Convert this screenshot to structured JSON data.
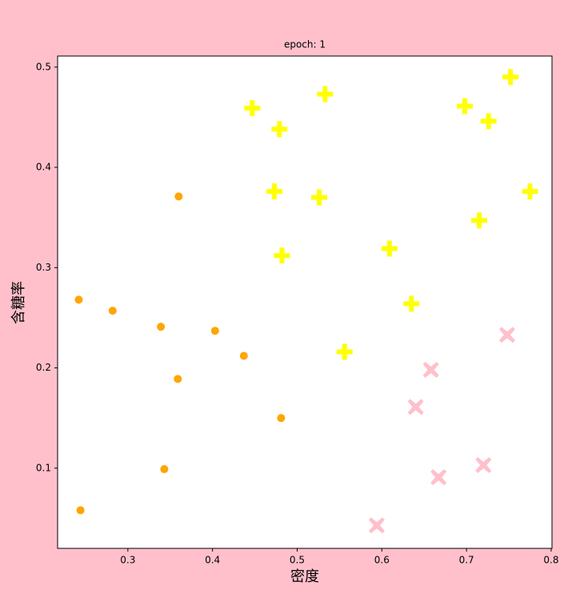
{
  "chart_data": {
    "type": "scatter",
    "title": "epoch: 1",
    "x_label": "密度",
    "y_label": "含糖率",
    "xlim": [
      0.217,
      0.801
    ],
    "ylim": [
      0.02,
      0.511
    ],
    "xticks": [
      0.3,
      0.4,
      0.5,
      0.6,
      0.7,
      0.8
    ],
    "yticks": [
      0.1,
      0.2,
      0.3,
      0.4,
      0.5
    ],
    "series": [
      {
        "marker": "circle",
        "color": "#ffa500",
        "x": [
          0.36,
          0.242,
          0.282,
          0.339,
          0.403,
          0.437,
          0.359,
          0.481,
          0.343,
          0.244
        ],
        "values": [
          0.371,
          0.268,
          0.257,
          0.241,
          0.237,
          0.212,
          0.189,
          0.15,
          0.099,
          0.058
        ]
      },
      {
        "marker": "plus",
        "color": "#ffff00",
        "x": [
          0.447,
          0.533,
          0.479,
          0.752,
          0.698,
          0.726,
          0.473,
          0.526,
          0.775,
          0.715,
          0.482,
          0.609,
          0.635,
          0.556
        ],
        "values": [
          0.459,
          0.473,
          0.438,
          0.49,
          0.461,
          0.446,
          0.376,
          0.37,
          0.376,
          0.347,
          0.312,
          0.319,
          0.264,
          0.216
        ]
      },
      {
        "marker": "x",
        "color": "#ffc0cb",
        "x": [
          0.748,
          0.658,
          0.64,
          0.72,
          0.667,
          0.594
        ],
        "values": [
          0.233,
          0.198,
          0.161,
          0.103,
          0.091,
          0.043
        ]
      }
    ]
  }
}
